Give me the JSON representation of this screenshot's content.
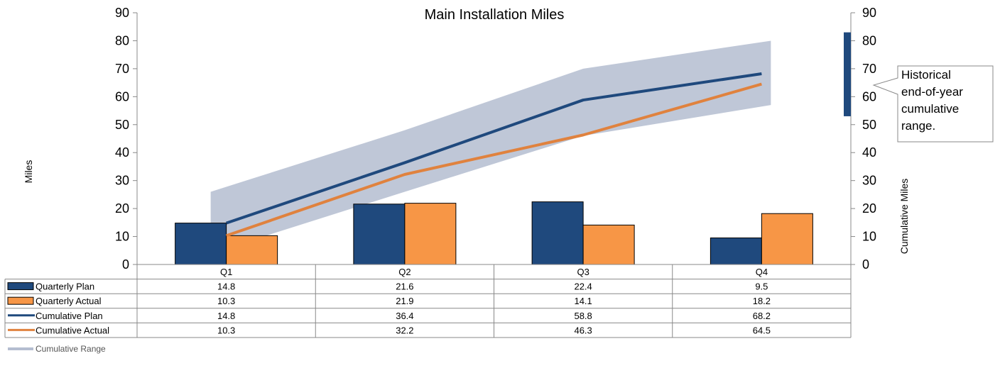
{
  "chart_data": {
    "type": "bar",
    "title": "Main Installation Miles",
    "ylabel": "Miles",
    "y2label": "Cumulative Miles",
    "ylim": [
      0,
      90
    ],
    "y2lim": [
      0,
      90
    ],
    "yticks": [
      0,
      10,
      20,
      30,
      40,
      50,
      60,
      70,
      80,
      90
    ],
    "categories": [
      "Q1",
      "Q2",
      "Q3",
      "Q4"
    ],
    "series": [
      {
        "name": "Quarterly Plan",
        "kind": "bar",
        "color": "#1f497d",
        "values": [
          14.8,
          21.6,
          22.4,
          9.5
        ],
        "labels": [
          "14.8",
          "21.6",
          "22.4",
          "9.5"
        ]
      },
      {
        "name": "Quarterly Actual",
        "kind": "bar",
        "color": "#f79646",
        "values": [
          10.3,
          21.9,
          14.1,
          18.2
        ],
        "labels": [
          "10.3",
          "21.9",
          "14.1",
          "18.2"
        ]
      },
      {
        "name": "Cumulative Plan",
        "kind": "line",
        "color": "#1f497d",
        "values": [
          14.8,
          36.4,
          58.8,
          68.2
        ],
        "labels": [
          "14.8",
          "36.4",
          "58.8",
          "68.2"
        ]
      },
      {
        "name": "Cumulative Actual",
        "kind": "line",
        "color": "#e0823e",
        "values": [
          10.3,
          32.2,
          46.3,
          64.5
        ],
        "labels": [
          "10.3",
          "32.2",
          "46.3",
          "64.5"
        ]
      }
    ],
    "range": {
      "name": "Cumulative Range",
      "color": "#b4bdd0",
      "low": [
        4,
        26,
        46,
        57
      ],
      "high": [
        26,
        48,
        70,
        80
      ]
    },
    "historical_range": {
      "low": 53,
      "high": 83,
      "color": "#1f497d"
    },
    "callout": {
      "lines": [
        "Historical",
        "end-of-year",
        "cumulative",
        "range."
      ]
    },
    "legend_placement": "data-table-bottom",
    "grid": false
  }
}
